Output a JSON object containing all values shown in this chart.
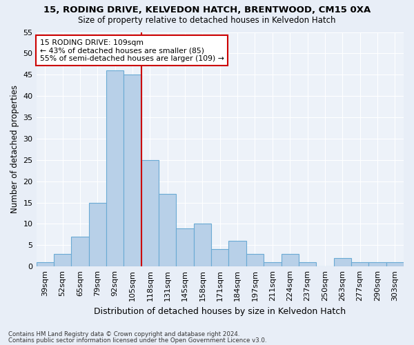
{
  "title1": "15, RODING DRIVE, KELVEDON HATCH, BRENTWOOD, CM15 0XA",
  "title2": "Size of property relative to detached houses in Kelvedon Hatch",
  "xlabel": "Distribution of detached houses by size in Kelvedon Hatch",
  "ylabel": "Number of detached properties",
  "categories": [
    "39sqm",
    "52sqm",
    "65sqm",
    "79sqm",
    "92sqm",
    "105sqm",
    "118sqm",
    "131sqm",
    "145sqm",
    "158sqm",
    "171sqm",
    "184sqm",
    "197sqm",
    "211sqm",
    "224sqm",
    "237sqm",
    "250sqm",
    "263sqm",
    "277sqm",
    "290sqm",
    "303sqm"
  ],
  "values": [
    1,
    3,
    7,
    15,
    46,
    45,
    25,
    17,
    9,
    10,
    4,
    6,
    3,
    1,
    3,
    1,
    0,
    2,
    1,
    1,
    1
  ],
  "bar_color": "#b8d0e8",
  "bar_edge_color": "#6aaad4",
  "vline_color": "#cc0000",
  "vline_x_index": 5.5,
  "annotation_text": "15 RODING DRIVE: 109sqm\n← 43% of detached houses are smaller (85)\n55% of semi-detached houses are larger (109) →",
  "annotation_box_color": "#ffffff",
  "annotation_box_edge": "#cc0000",
  "ylim": [
    0,
    55
  ],
  "yticks": [
    0,
    5,
    10,
    15,
    20,
    25,
    30,
    35,
    40,
    45,
    50,
    55
  ],
  "footnote1": "Contains HM Land Registry data © Crown copyright and database right 2024.",
  "footnote2": "Contains public sector information licensed under the Open Government Licence v3.0.",
  "bg_color": "#e8eef7",
  "plot_bg_color": "#edf2f9"
}
